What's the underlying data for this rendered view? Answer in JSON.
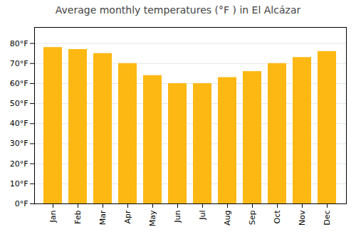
{
  "chart_data": {
    "type": "bar",
    "title": "Average monthly temperatures (°F ) in El Alcázar",
    "categories": [
      "Jan",
      "Feb",
      "Mar",
      "Apr",
      "May",
      "Jun",
      "Jul",
      "Aug",
      "Sep",
      "Oct",
      "Nov",
      "Dec"
    ],
    "values": [
      78,
      77,
      75,
      70,
      64,
      60,
      60,
      63,
      66,
      70,
      73,
      76
    ],
    "color": "#FDB813",
    "ylim": [
      0,
      88
    ],
    "yticks": [
      {
        "value": 0,
        "label": "0°F"
      },
      {
        "value": 10,
        "label": "10°F"
      },
      {
        "value": 20,
        "label": "20°F"
      },
      {
        "value": 30,
        "label": "30°F"
      },
      {
        "value": 40,
        "label": "40°F"
      },
      {
        "value": 50,
        "label": "50°F"
      },
      {
        "value": 60,
        "label": "60°F"
      },
      {
        "value": 70,
        "label": "70°F"
      },
      {
        "value": 80,
        "label": "80°F"
      }
    ],
    "grid": true
  }
}
